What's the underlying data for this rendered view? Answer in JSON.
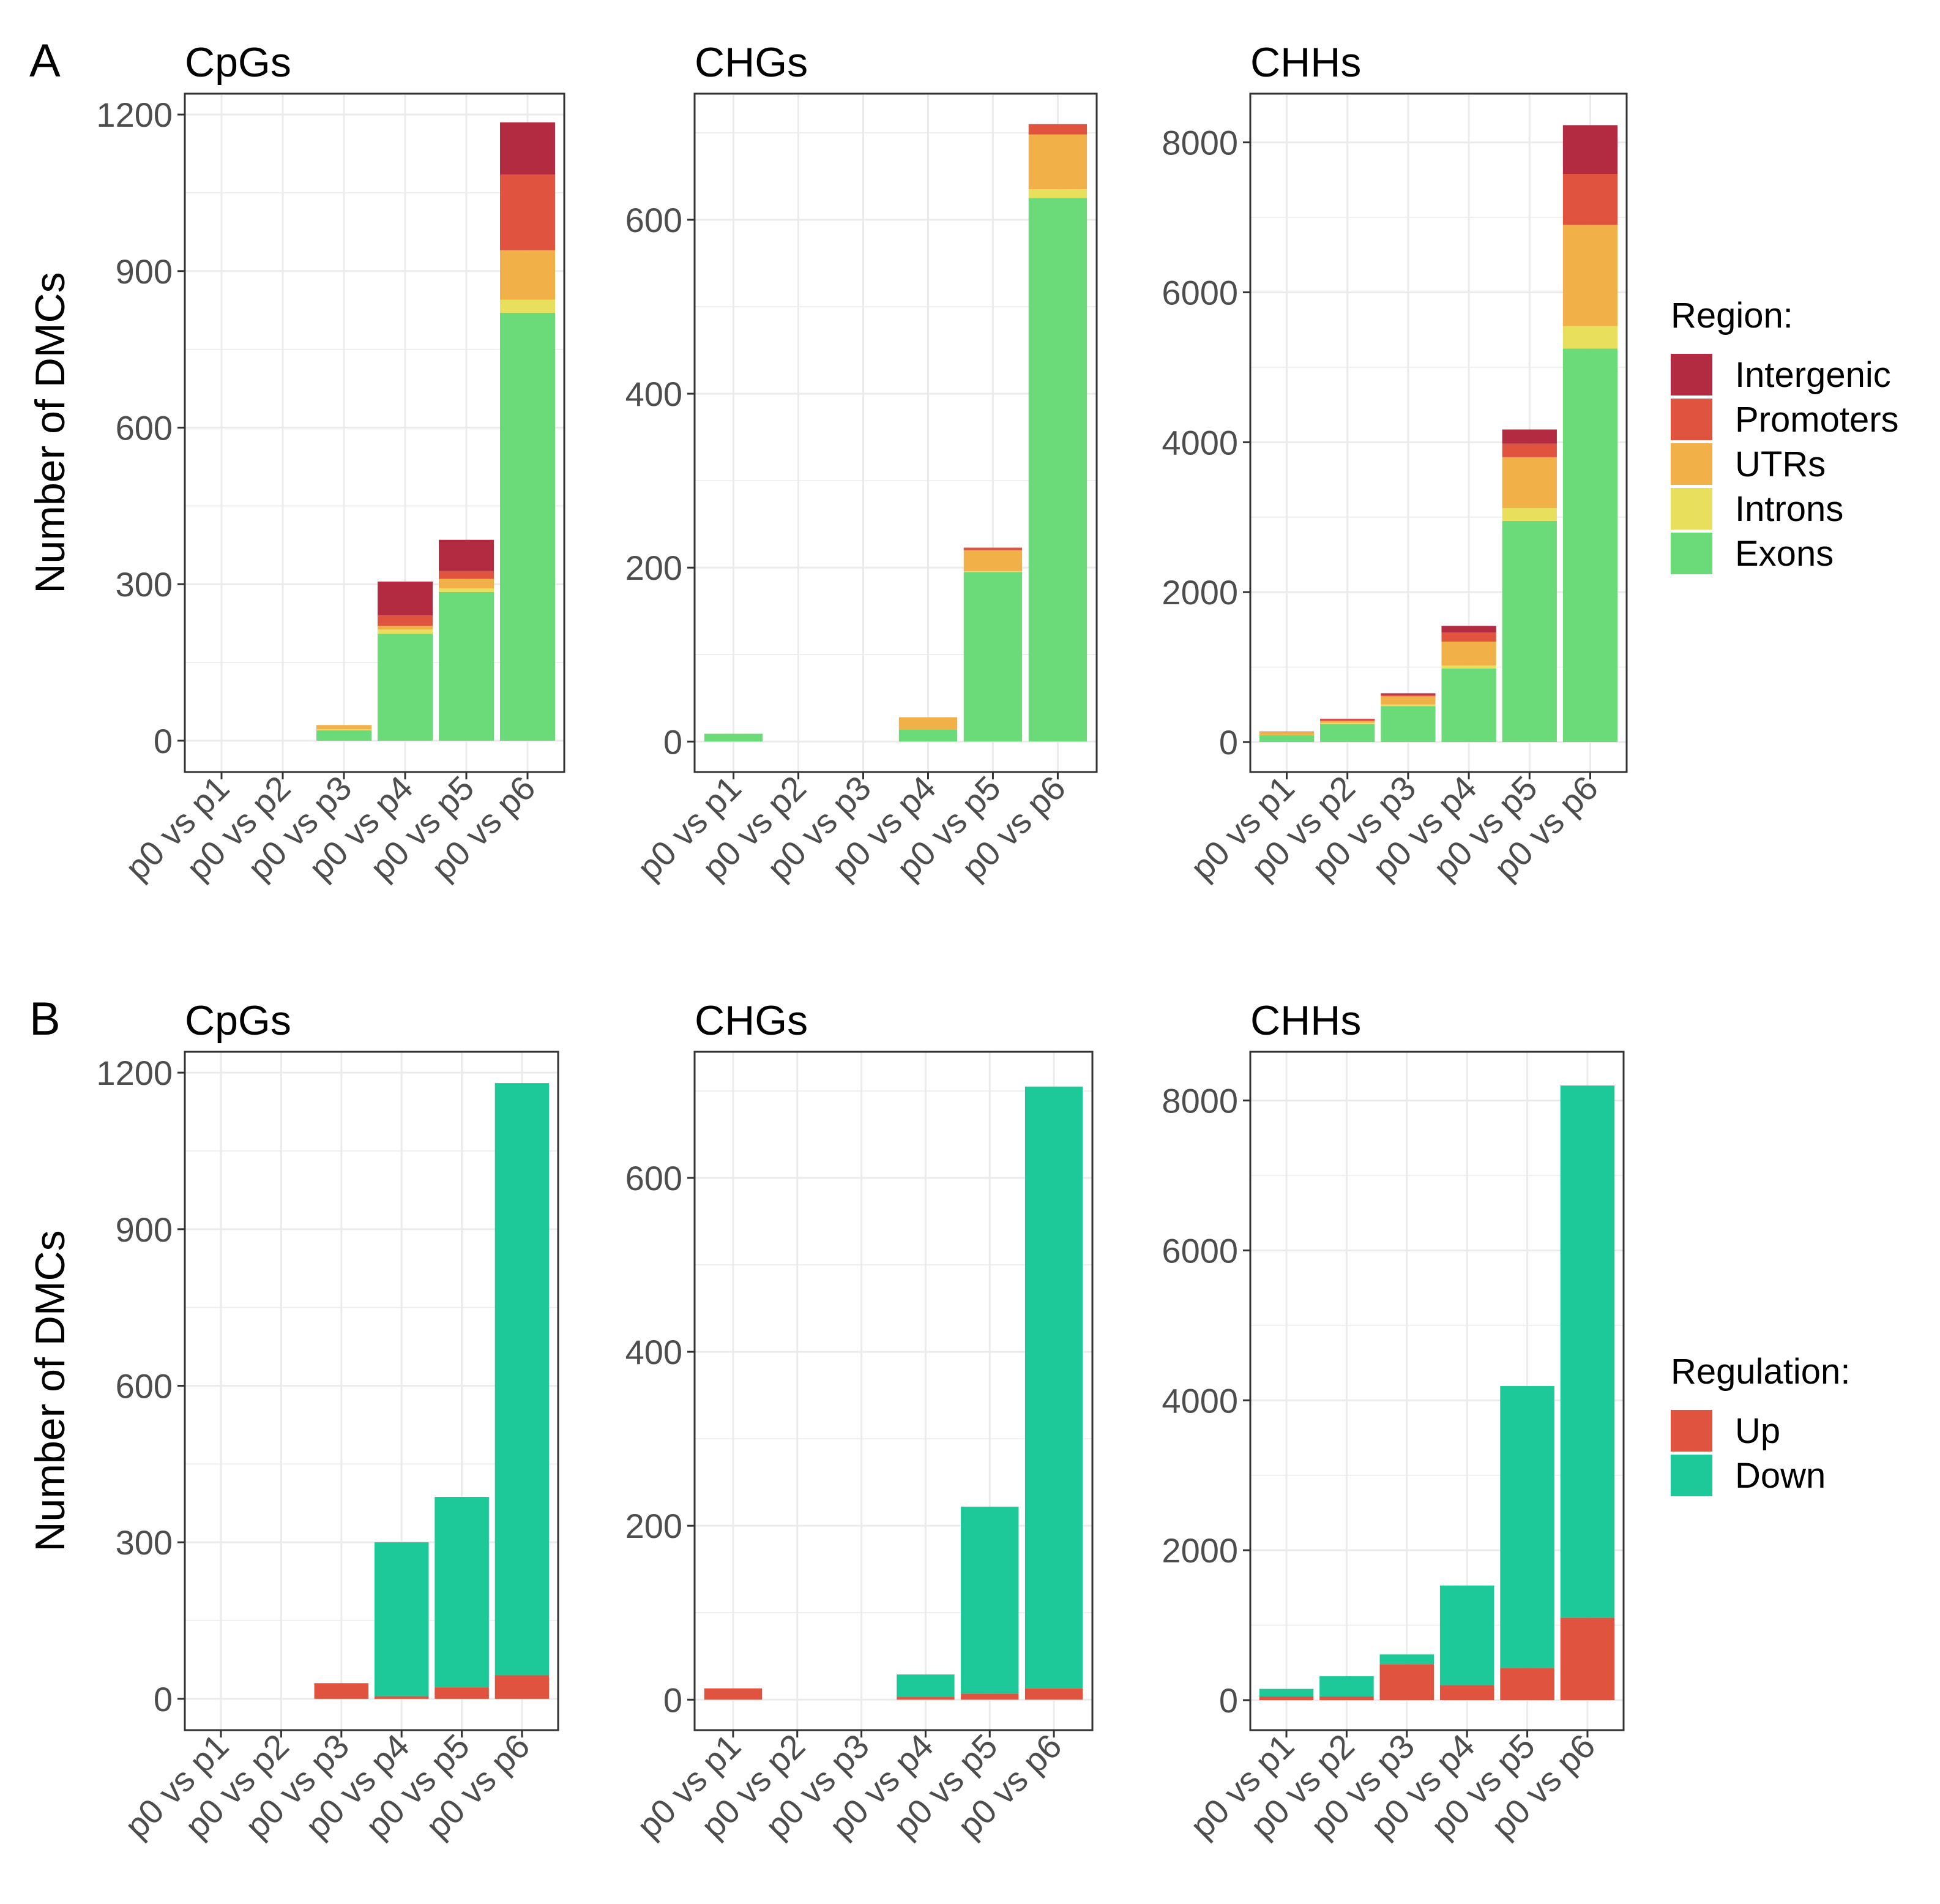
{
  "figure": {
    "panels": [
      {
        "letter": "A",
        "legend_title": "Region:"
      },
      {
        "letter": "B",
        "legend_title": "Regulation:"
      }
    ],
    "y_axis_label": "Number of DMCs"
  },
  "colors": {
    "Intergenic": "#B22B40",
    "Promoters": "#E0533F",
    "UTRs": "#F2B148",
    "Introns": "#E8DF5C",
    "Exons": "#6ADB78",
    "Up": "#E0533F",
    "Down": "#1EC999"
  },
  "chart_data": [
    {
      "type": "bar",
      "stacked": true,
      "panel": "A",
      "title": "CpGs",
      "xlabel": "",
      "ylabel": "Number of DMCs",
      "categories": [
        "p0 vs p1",
        "p0 vs p2",
        "p0 vs p3",
        "p0 vs p4",
        "p0 vs p5",
        "p0 vs p6"
      ],
      "yticks": [
        0,
        300,
        600,
        900,
        1200
      ],
      "ylim": [
        -60,
        1240
      ],
      "series": [
        {
          "name": "Exons",
          "values": [
            0,
            0,
            20,
            205,
            285,
            820
          ]
        },
        {
          "name": "Introns",
          "values": [
            0,
            0,
            2,
            8,
            7,
            25
          ]
        },
        {
          "name": "UTRs",
          "values": [
            0,
            0,
            8,
            7,
            18,
            95
          ]
        },
        {
          "name": "Promoters",
          "values": [
            0,
            0,
            0,
            20,
            15,
            145
          ]
        },
        {
          "name": "Intergenic",
          "values": [
            0,
            0,
            0,
            65,
            60,
            100
          ]
        }
      ]
    },
    {
      "type": "bar",
      "stacked": true,
      "panel": "A",
      "title": "CHGs",
      "xlabel": "",
      "ylabel": "",
      "categories": [
        "p0 vs p1",
        "p0 vs p2",
        "p0 vs p3",
        "p0 vs p4",
        "p0 vs p5",
        "p0 vs p6"
      ],
      "yticks": [
        0,
        200,
        400,
        600
      ],
      "ylim": [
        -35,
        745
      ],
      "series": [
        {
          "name": "Exons",
          "values": [
            9,
            0,
            0,
            14,
            195,
            625
          ]
        },
        {
          "name": "Introns",
          "values": [
            0,
            0,
            0,
            0,
            1,
            10
          ]
        },
        {
          "name": "UTRs",
          "values": [
            0,
            0,
            0,
            14,
            24,
            63
          ]
        },
        {
          "name": "Promoters",
          "values": [
            0,
            0,
            0,
            0,
            3,
            12
          ]
        },
        {
          "name": "Intergenic",
          "values": [
            0,
            0,
            0,
            0,
            0,
            0
          ]
        }
      ]
    },
    {
      "type": "bar",
      "stacked": true,
      "panel": "A",
      "title": "CHHs",
      "xlabel": "",
      "ylabel": "",
      "categories": [
        "p0 vs p1",
        "p0 vs p2",
        "p0 vs p3",
        "p0 vs p4",
        "p0 vs p5",
        "p0 vs p6"
      ],
      "yticks": [
        0,
        2000,
        4000,
        6000,
        8000
      ],
      "ylim": [
        -400,
        8650
      ],
      "series": [
        {
          "name": "Exons",
          "values": [
            90,
            240,
            480,
            980,
            2950,
            5250
          ]
        },
        {
          "name": "Introns",
          "values": [
            5,
            15,
            20,
            40,
            170,
            300
          ]
        },
        {
          "name": "UTRs",
          "values": [
            35,
            25,
            110,
            320,
            680,
            1350
          ]
        },
        {
          "name": "Promoters",
          "values": [
            10,
            20,
            20,
            120,
            180,
            680
          ]
        },
        {
          "name": "Intergenic",
          "values": [
            0,
            10,
            20,
            90,
            190,
            650
          ]
        }
      ]
    },
    {
      "type": "bar",
      "stacked": true,
      "panel": "B",
      "title": "CpGs",
      "xlabel": "",
      "ylabel": "Number of DMCs",
      "categories": [
        "p0 vs p1",
        "p0 vs p2",
        "p0 vs p3",
        "p0 vs p4",
        "p0 vs p5",
        "p0 vs p6"
      ],
      "yticks": [
        0,
        300,
        600,
        900,
        1200
      ],
      "ylim": [
        -60,
        1240
      ],
      "series": [
        {
          "name": "Up",
          "values": [
            0,
            0,
            30,
            5,
            22,
            45
          ]
        },
        {
          "name": "Down",
          "values": [
            0,
            0,
            0,
            295,
            365,
            1135
          ]
        }
      ]
    },
    {
      "type": "bar",
      "stacked": true,
      "panel": "B",
      "title": "CHGs",
      "xlabel": "",
      "ylabel": "",
      "categories": [
        "p0 vs p1",
        "p0 vs p2",
        "p0 vs p3",
        "p0 vs p4",
        "p0 vs p5",
        "p0 vs p6"
      ],
      "yticks": [
        0,
        200,
        400,
        600
      ],
      "ylim": [
        -35,
        745
      ],
      "series": [
        {
          "name": "Up",
          "values": [
            13,
            0,
            0,
            3,
            7,
            13
          ]
        },
        {
          "name": "Down",
          "values": [
            0,
            0,
            0,
            26,
            215,
            692
          ]
        }
      ]
    },
    {
      "type": "bar",
      "stacked": true,
      "panel": "B",
      "title": "CHHs",
      "xlabel": "",
      "ylabel": "",
      "categories": [
        "p0 vs p1",
        "p0 vs p2",
        "p0 vs p3",
        "p0 vs p4",
        "p0 vs p5",
        "p0 vs p6"
      ],
      "yticks": [
        0,
        2000,
        4000,
        6000,
        8000
      ],
      "ylim": [
        -400,
        8650
      ],
      "series": [
        {
          "name": "Up",
          "values": [
            50,
            50,
            480,
            200,
            430,
            1100
          ]
        },
        {
          "name": "Down",
          "values": [
            100,
            270,
            130,
            1330,
            3760,
            7100
          ]
        }
      ]
    }
  ],
  "legends": [
    {
      "panel": "A",
      "title": "Region:",
      "items": [
        "Intergenic",
        "Promoters",
        "UTRs",
        "Introns",
        "Exons"
      ]
    },
    {
      "panel": "B",
      "title": "Regulation:",
      "items": [
        "Up",
        "Down"
      ]
    }
  ]
}
